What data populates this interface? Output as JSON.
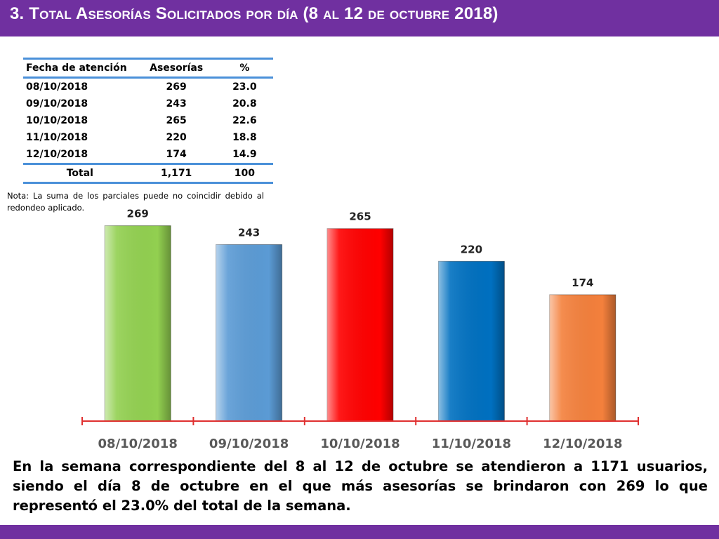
{
  "header": {
    "title": "3.  Total Asesorías Solicitados por día  (8 al 12 de octubre 2018)"
  },
  "table": {
    "headers": [
      "Fecha de atención",
      "Asesorías",
      "%"
    ],
    "rows": [
      [
        "08/10/2018",
        "269",
        "23.0"
      ],
      [
        "09/10/2018",
        "243",
        "20.8"
      ],
      [
        "10/10/2018",
        "265",
        "22.6"
      ],
      [
        "11/10/2018",
        "220",
        "18.8"
      ],
      [
        "12/10/2018",
        "174",
        "14.9"
      ]
    ],
    "total": [
      "Total",
      "1,171",
      "100"
    ]
  },
  "note": "Nota: La suma de los parciales puede no coincidir debido al redondeo aplicado.",
  "summary": "En la semana correspondiente del 8 al 12 de octubre se atendieron a 1171 usuarios, siendo el día 8 de octubre en el que más asesorías se brindaron con 269 lo que representó el 23.0% del total de la semana.",
  "chart_data": {
    "type": "bar",
    "categories": [
      "08/10/2018",
      "09/10/2018",
      "10/10/2018",
      "11/10/2018",
      "12/10/2018"
    ],
    "values": [
      269,
      243,
      265,
      220,
      174
    ],
    "colors": [
      "#92d050",
      "#5b9bd5",
      "#ff0000",
      "#0070c0",
      "#f4803c"
    ],
    "axis_color": "#e03030",
    "ylim": [
      0,
      300
    ],
    "grid": false,
    "legend": false
  },
  "colors": {
    "title_bar": "#7030a0",
    "table_rule": "#4a90d9"
  }
}
